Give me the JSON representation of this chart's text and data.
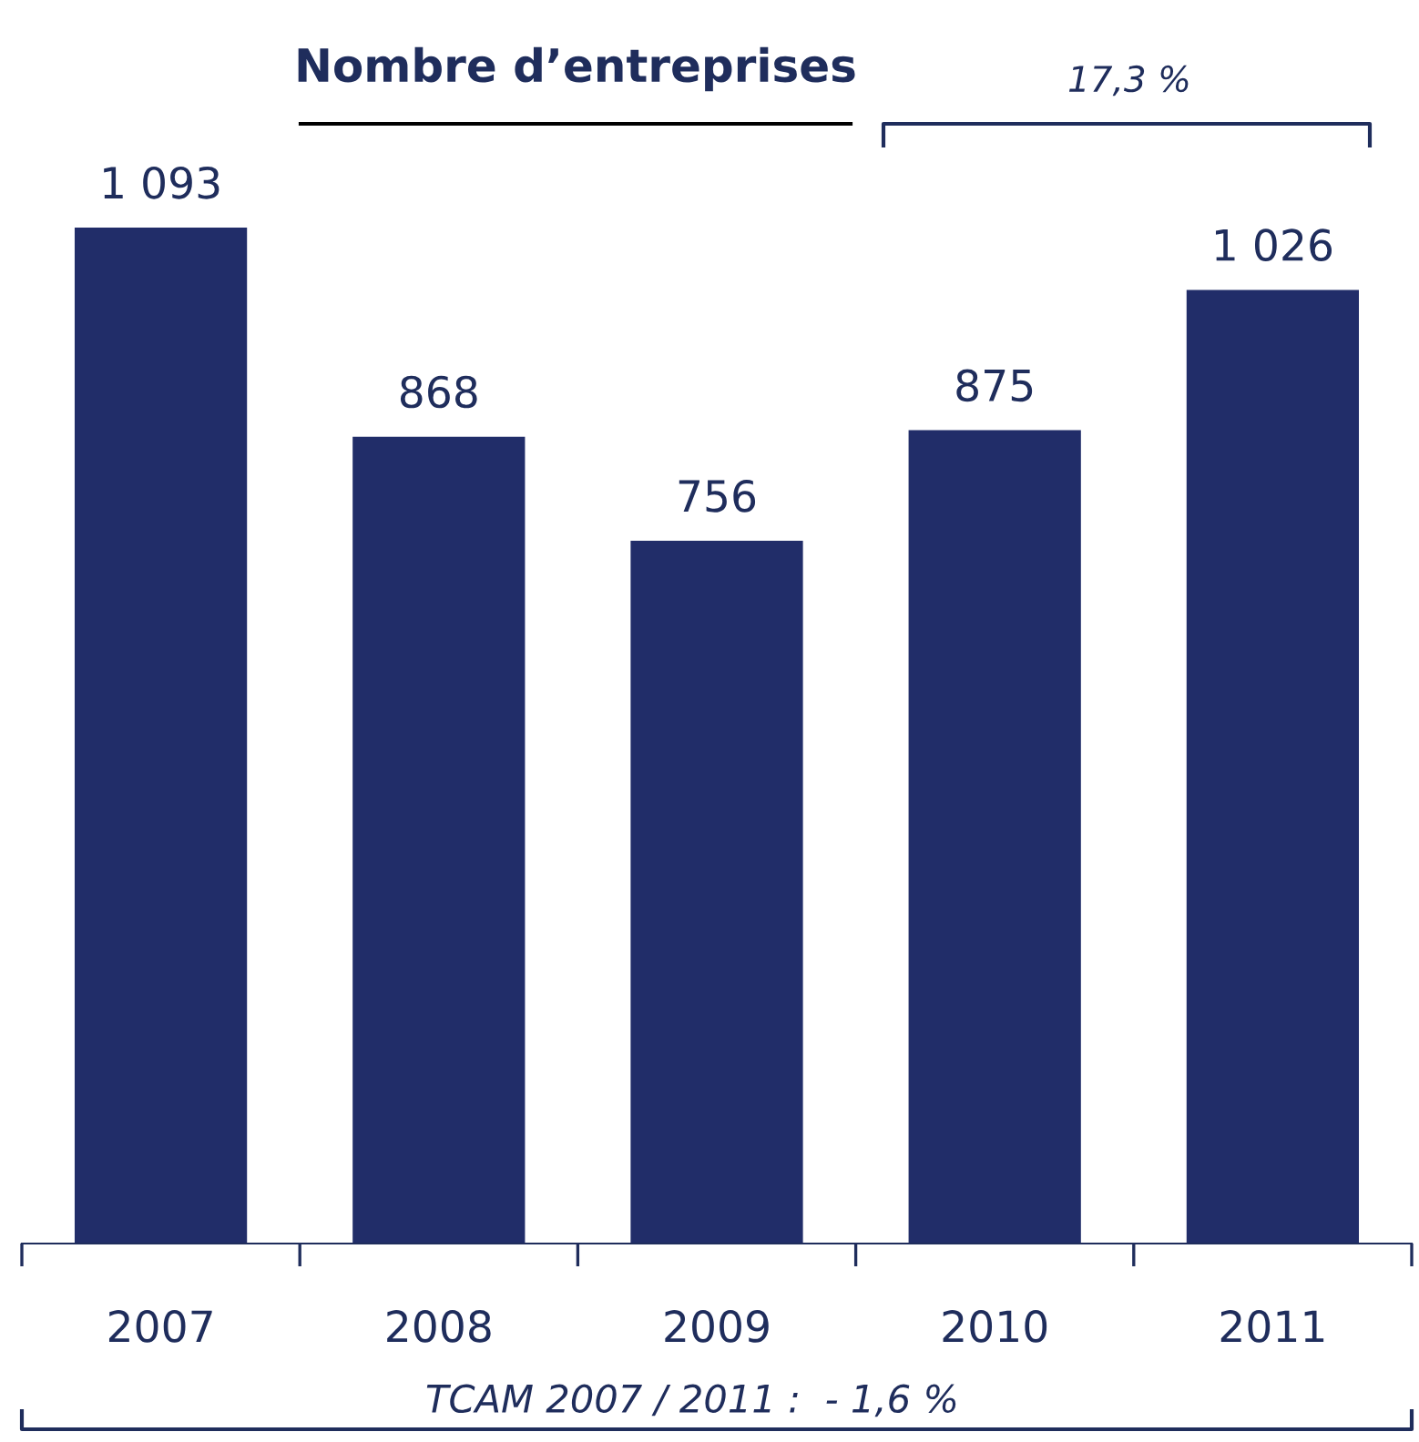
{
  "chart_data": {
    "type": "bar",
    "title": "Nombre d’entreprises",
    "categories": [
      "2007",
      "2008",
      "2009",
      "2010",
      "2011"
    ],
    "values": [
      1093,
      868,
      756,
      875,
      1026
    ],
    "value_labels": [
      "1 093",
      "868",
      "756",
      "875",
      "1 026"
    ],
    "color": "#212d69",
    "annotations": [
      "17,3 %",
      "TCAM 2007 / 2011 :  - 1,6 %"
    ],
    "grid": false,
    "legend": false
  }
}
